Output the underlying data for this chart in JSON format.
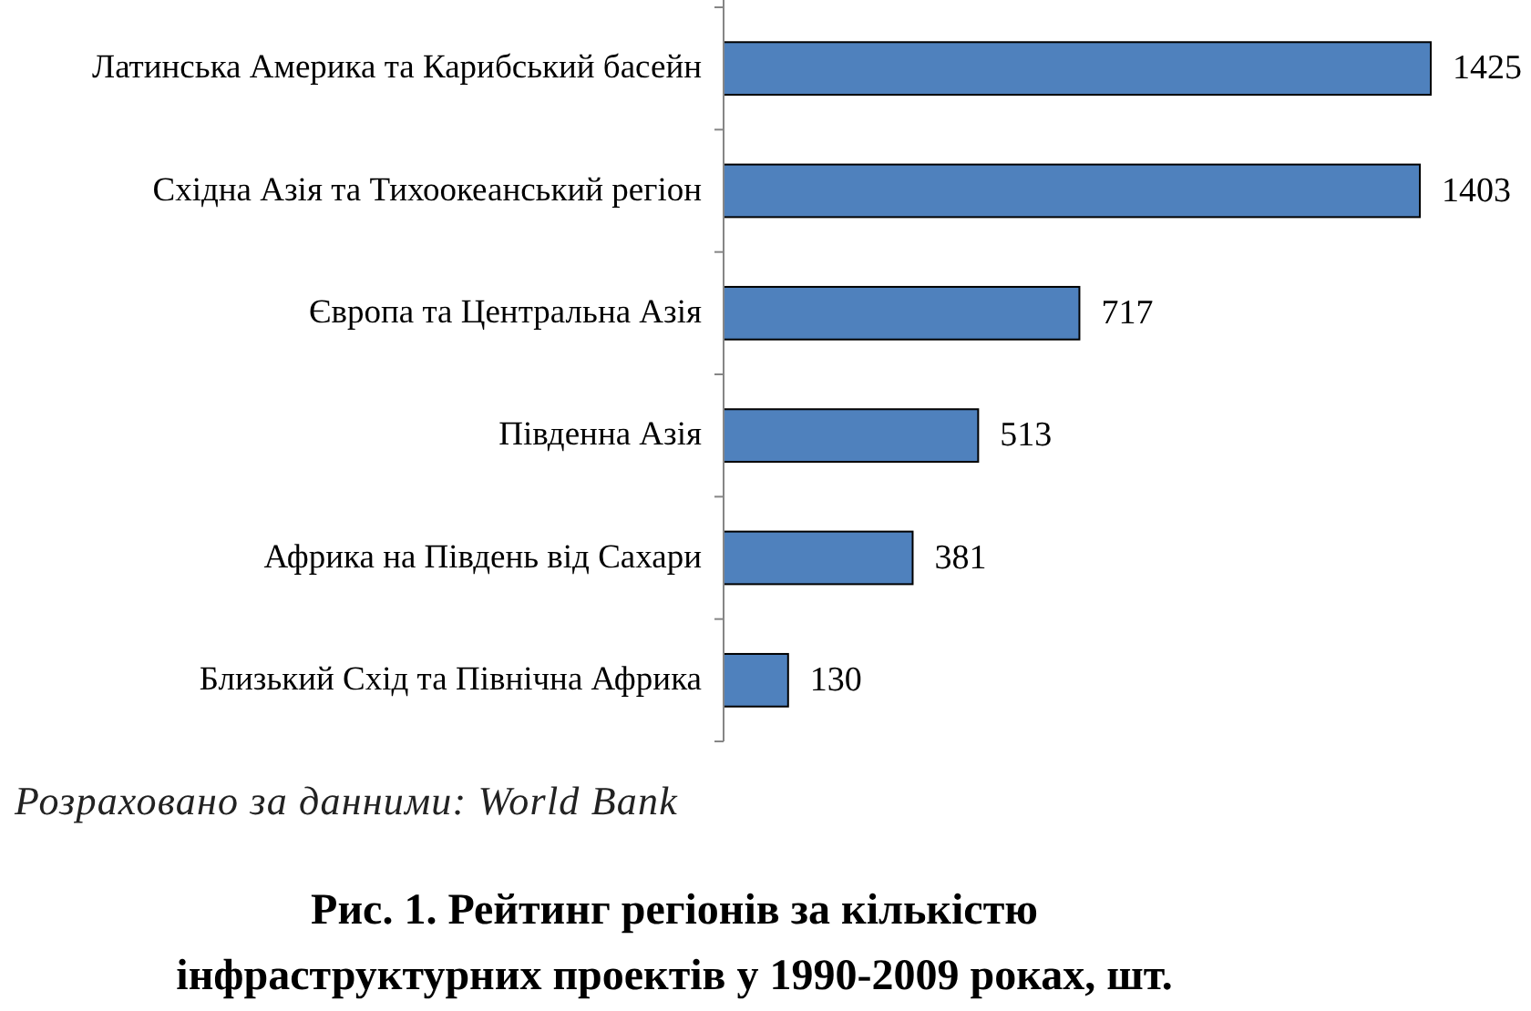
{
  "chart_data": {
    "type": "bar",
    "orientation": "horizontal",
    "title": "Рис. 1. Рейтинг регіонів за кількістю інфраструктурних проектів у 1990-2009 роках, шт.",
    "categories": [
      "Латинська Америка та Карибський басейн",
      "Східна Азія та Тихоокеанський регіон",
      "Європа та Центральна Азія",
      "Південна Азія",
      "Африка на Південь від Сахари",
      "Близький Схід та Північна Африка"
    ],
    "values": [
      1425,
      1403,
      717,
      513,
      381,
      130
    ],
    "color": "#4f81bd",
    "data_labels": true,
    "annotations": [
      "Розраховано за данними: World Bank"
    ]
  }
}
